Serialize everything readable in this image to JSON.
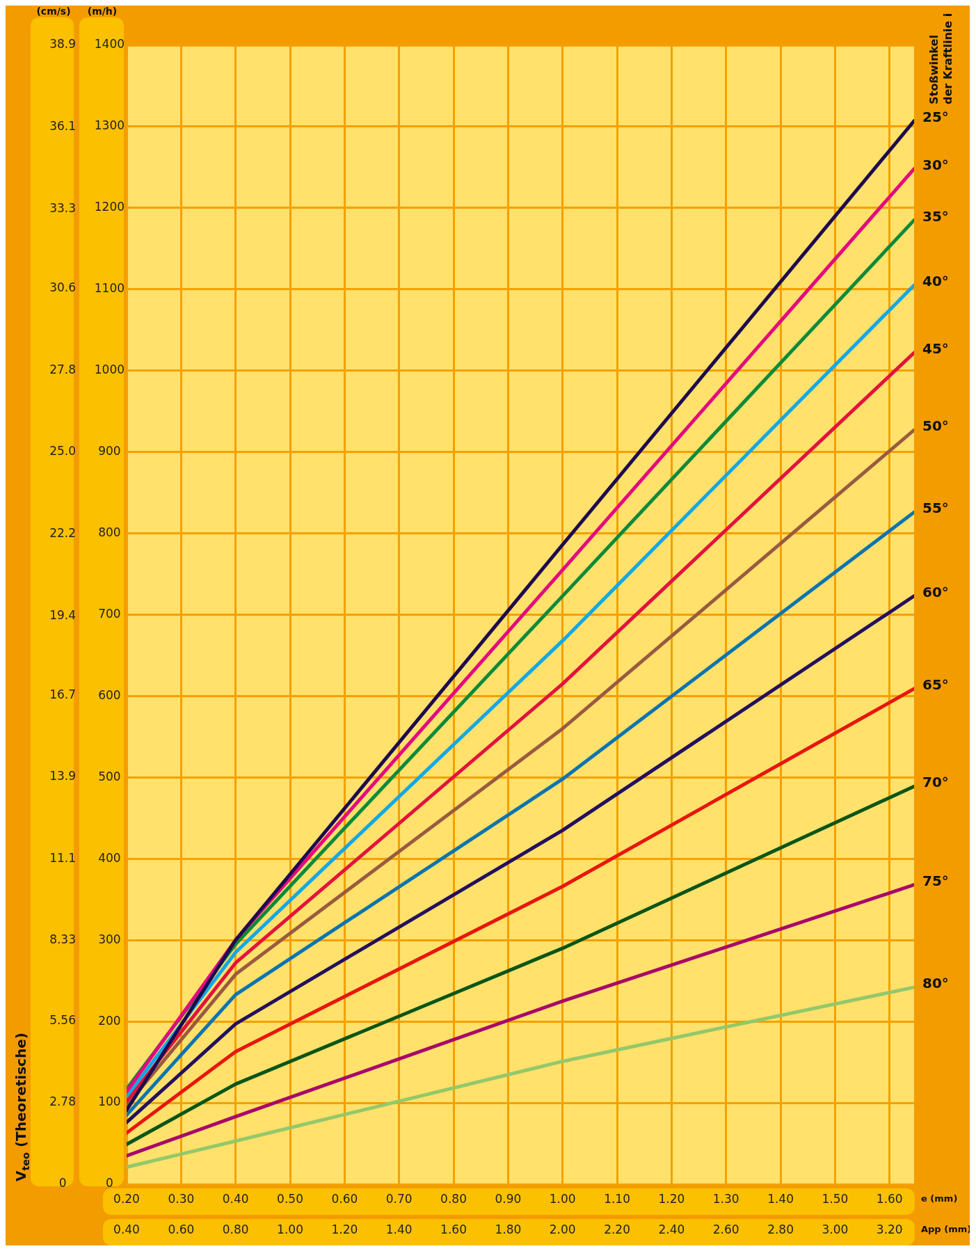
{
  "chart_data": {
    "type": "line",
    "ylabel": "(m/h)",
    "y2label": "(cm/s)",
    "xlabel": "e (mm)",
    "x2label": "App (mm)",
    "legend_title": "Stoßwinkel der Kraftlinie i",
    "annotations": [
      "V$_{teo}$ (Theoretische)"
    ],
    "x": [
      0.2,
      0.4,
      1.0,
      1.645
    ],
    "xlim": [
      0.2,
      1.645
    ],
    "xticks": [
      {
        "value": 0.2,
        "label": "0.20"
      },
      {
        "value": 0.3,
        "label": "0.30"
      },
      {
        "value": 0.4,
        "label": "0.40"
      },
      {
        "value": 0.5,
        "label": "0.50"
      },
      {
        "value": 0.6,
        "label": "0.60"
      },
      {
        "value": 0.7,
        "label": "0.70"
      },
      {
        "value": 0.8,
        "label": "0.80"
      },
      {
        "value": 0.9,
        "label": "0.90"
      },
      {
        "value": 1.0,
        "label": "1.00"
      },
      {
        "value": 1.1,
        "label": "1.10"
      },
      {
        "value": 1.2,
        "label": "1.20"
      },
      {
        "value": 1.3,
        "label": "1.30"
      },
      {
        "value": 1.4,
        "label": "1.40"
      },
      {
        "value": 1.5,
        "label": "1.50"
      },
      {
        "value": 1.6,
        "label": "1.60"
      }
    ],
    "x2lim": [
      0.4,
      3.29
    ],
    "x2ticks": [
      {
        "value": 0.4,
        "label": "0.40"
      },
      {
        "value": 0.6,
        "label": "0.60"
      },
      {
        "value": 0.8,
        "label": "0.80"
      },
      {
        "value": 1.0,
        "label": "1.00"
      },
      {
        "value": 1.2,
        "label": "1.20"
      },
      {
        "value": 1.4,
        "label": "1.40"
      },
      {
        "value": 1.6,
        "label": "1.60"
      },
      {
        "value": 1.8,
        "label": "1.80"
      },
      {
        "value": 2.0,
        "label": "2.00"
      },
      {
        "value": 2.2,
        "label": "2.20"
      },
      {
        "value": 2.4,
        "label": "2.40"
      },
      {
        "value": 2.6,
        "label": "2.60"
      },
      {
        "value": 2.8,
        "label": "2.80"
      },
      {
        "value": 3.0,
        "label": "3.00"
      },
      {
        "value": 3.2,
        "label": "3.20"
      }
    ],
    "ylim": [
      0,
      1400
    ],
    "yticks": [
      0,
      100,
      200,
      300,
      400,
      500,
      600,
      700,
      800,
      900,
      1000,
      1100,
      1200,
      1300,
      1400
    ],
    "y2lim": [
      0,
      38.9
    ],
    "y2ticks": [
      0,
      2.78,
      5.56,
      8.33,
      11.1,
      13.9,
      16.7,
      19.4,
      22.2,
      {
        "value": 25,
        "label": "25.0"
      },
      27.8,
      30.6,
      33.3,
      36.1,
      38.9
    ],
    "grid": true,
    "marker": "none",
    "line_style": "solid",
    "series": [
      {
        "name": "25°",
        "color": "#1e0a4f",
        "values": [
          91,
          300,
          786,
          1307
        ]
      },
      {
        "name": "30°",
        "color": "#e4097f",
        "values": [
          114,
          300,
          755,
          1248
        ]
      },
      {
        "name": "35°",
        "color": "#0c8a3a",
        "values": [
          117,
          295,
          723,
          1185
        ]
      },
      {
        "name": "40°",
        "color": "#12a8e6",
        "values": [
          108,
          285,
          668,
          1105
        ]
      },
      {
        "name": "45°",
        "color": "#e3123e",
        "values": [
          102,
          272,
          615,
          1022
        ]
      },
      {
        "name": "50°",
        "color": "#9a5a40",
        "values": [
          97,
          258,
          560,
          927
        ]
      },
      {
        "name": "55°",
        "color": "#0b74b0",
        "values": [
          85,
          233,
          498,
          826
        ]
      },
      {
        "name": "60°",
        "color": "#24105e",
        "values": [
          76,
          197,
          435,
          723
        ]
      },
      {
        "name": "65°",
        "color": "#e8160e",
        "values": [
          63,
          163,
          366,
          609
        ]
      },
      {
        "name": "70°",
        "color": "#0a5518",
        "values": [
          49,
          123,
          290,
          489
        ]
      },
      {
        "name": "75°",
        "color": "#a8096a",
        "values": [
          35,
          83,
          225,
          368
        ]
      },
      {
        "name": "80°",
        "color": "#93c86a",
        "values": [
          21,
          53,
          151,
          242
        ]
      }
    ]
  }
}
